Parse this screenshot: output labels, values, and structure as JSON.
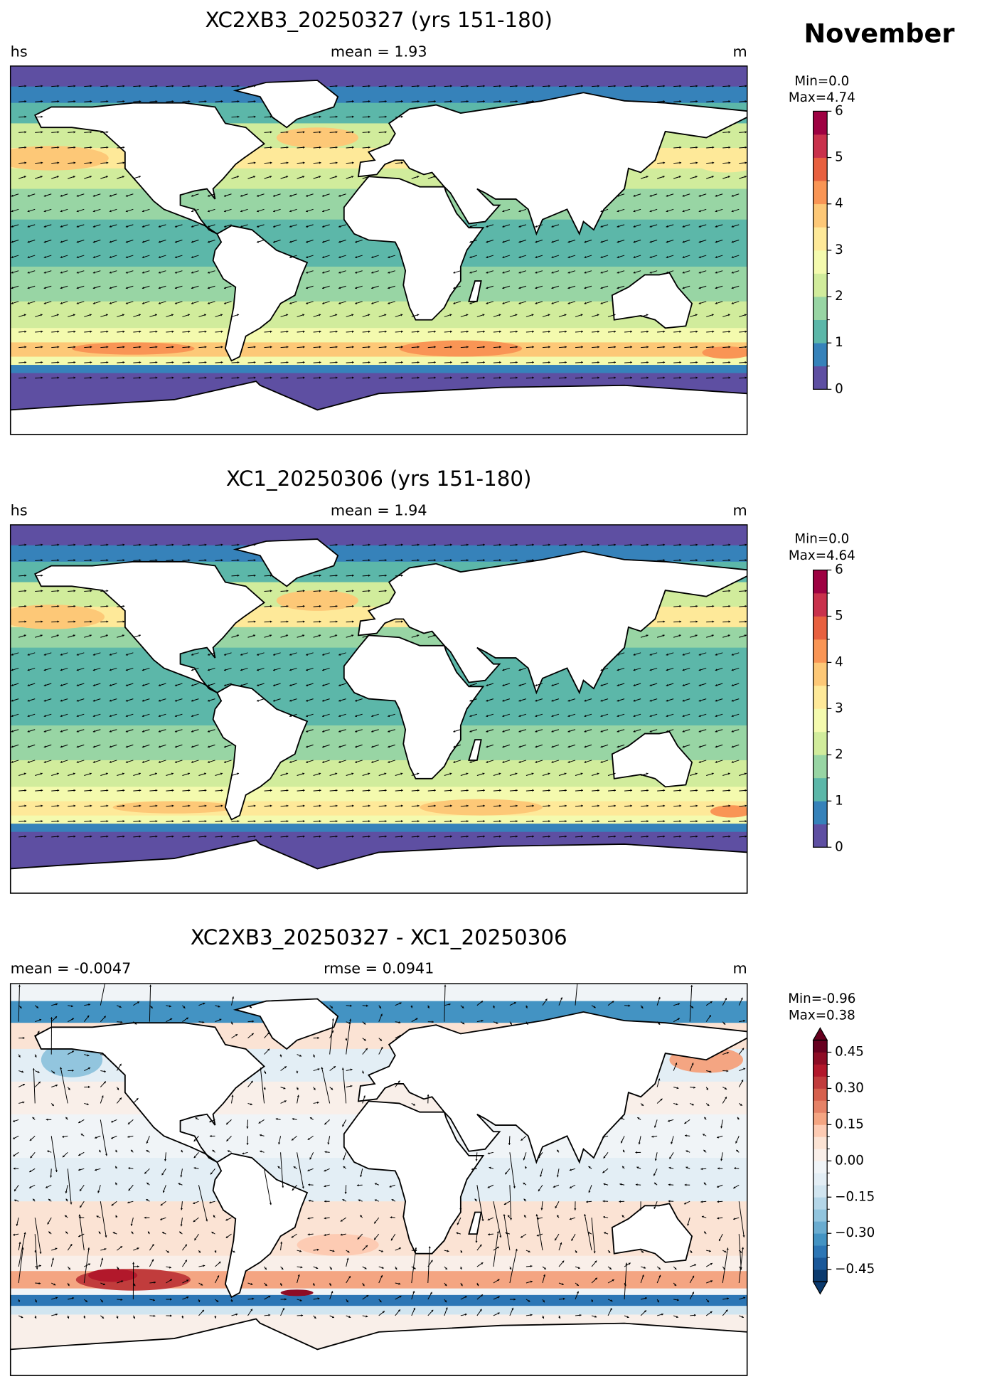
{
  "title": "November",
  "panels": [
    {
      "title": "XC2XB3_20250327 (yrs 151-180)",
      "left_label": "hs",
      "center_label": "mean = 1.93",
      "right_label": "m",
      "min_label": "Min=0.0",
      "max_label": "Max=4.74",
      "colorbar": {
        "lim": [
          0,
          6
        ],
        "ticks": [
          0,
          1,
          2,
          3,
          4,
          5,
          6
        ],
        "colors": [
          "#5e4fa2",
          "#3682ba",
          "#5cb7a9",
          "#98d5a4",
          "#d1ec9c",
          "#f4faae",
          "#fee999",
          "#fdc877",
          "#f99555",
          "#e8603f",
          "#c9314c",
          "#9e0142"
        ]
      }
    },
    {
      "title": "XC1_20250306 (yrs 151-180)",
      "left_label": "hs",
      "center_label": "mean = 1.94",
      "right_label": "m",
      "min_label": "Min=0.0",
      "max_label": "Max=4.64",
      "colorbar": {
        "lim": [
          0,
          6
        ],
        "ticks": [
          0,
          1,
          2,
          3,
          4,
          5,
          6
        ],
        "colors": [
          "#5e4fa2",
          "#3682ba",
          "#5cb7a9",
          "#98d5a4",
          "#d1ec9c",
          "#f4faae",
          "#fee999",
          "#fdc877",
          "#f99555",
          "#e8603f",
          "#c9314c",
          "#9e0142"
        ]
      }
    },
    {
      "title": "XC2XB3_20250327 - XC1_20250306",
      "left_label": "mean = -0.0047",
      "center_label": "rmse = 0.0941",
      "right_label": "m",
      "min_label": "Min=-0.96",
      "max_label": "Max=0.38",
      "colorbar": {
        "lim": [
          -0.5,
          0.5
        ],
        "extend": "both",
        "ticks": [
          {
            "value": -0.45,
            "label": "−0.45"
          },
          {
            "value": -0.3,
            "label": "−0.30"
          },
          {
            "value": -0.15,
            "label": "−0.15"
          },
          {
            "value": 0,
            "label": "0.00"
          },
          0.15,
          {
            "value": 0.3,
            "label": "0.30"
          },
          0.45
        ],
        "colors": [
          "#0b3a6e",
          "#1a5899",
          "#2c76b5",
          "#4393c3",
          "#6aacd0",
          "#92c5de",
          "#b4d6e8",
          "#d1e5f0",
          "#e3eef5",
          "#f0f4f7",
          "#f9efe9",
          "#fbe3d4",
          "#fdcbb3",
          "#f4a582",
          "#e58267",
          "#d6604d",
          "#c13c3c",
          "#b2182b",
          "#8d0c25",
          "#67001f"
        ]
      }
    }
  ]
}
